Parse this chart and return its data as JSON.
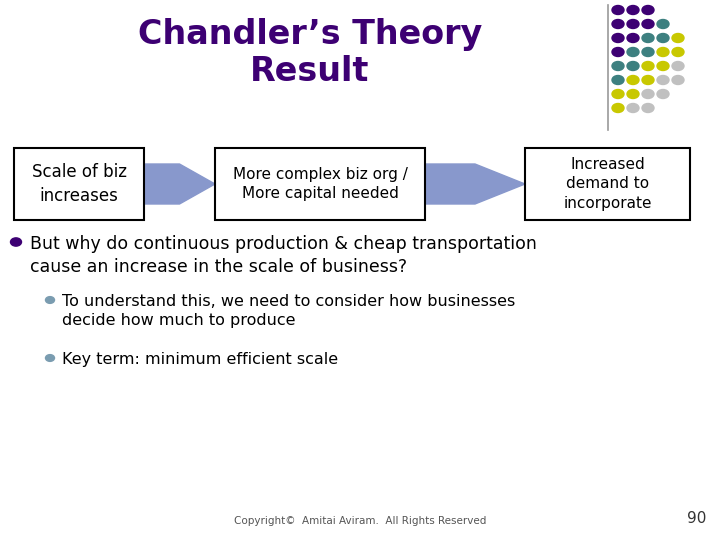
{
  "title_line1": "Chandler’s Theory",
  "title_line2": "Result",
  "title_color": "#3d0073",
  "title_fontsize": 24,
  "bg_color": "#ffffff",
  "box1_text": "Scale of biz\nincreases",
  "box2_text": "More complex biz org /\nMore capital needed",
  "box3_text": "Increased\ndemand to\nincorporate",
  "box_facecolor": "#ffffff",
  "box_edgecolor": "#000000",
  "arrow_color": "#8898cc",
  "bullet1_text": "But why do continuous production & cheap transportation\ncause an increase in the scale of business?",
  "bullet2_text": "To understand this, we need to consider how businesses\ndecide how much to produce",
  "bullet3_text": "Key term: minimum efficient scale",
  "bullet_color": "#000000",
  "bullet_dot_color": "#3d0073",
  "sub_bullet_dot_color": "#7a9cb0",
  "footer_text": "Copyright©  Amitai Aviram.  All Rights Reserved",
  "page_number": "90",
  "dot_grid": [
    [
      "#3d0073",
      "#3d0073",
      "#3d0073",
      "",
      ""
    ],
    [
      "#3d0073",
      "#3d0073",
      "#3d0073",
      "#3d8080",
      ""
    ],
    [
      "#3d0073",
      "#3d0073",
      "#3d8080",
      "#3d8080",
      "#c8c800"
    ],
    [
      "#3d0073",
      "#3d8080",
      "#3d8080",
      "#c8c800",
      "#c8c800"
    ],
    [
      "#3d8080",
      "#3d8080",
      "#c8c800",
      "#c8c800",
      "#c0c0c0"
    ],
    [
      "#3d8080",
      "#c8c800",
      "#c8c800",
      "#c0c0c0",
      "#c0c0c0"
    ],
    [
      "#c8c800",
      "#c8c800",
      "#c0c0c0",
      "#c0c0c0",
      ""
    ],
    [
      "#c8c800",
      "#c0c0c0",
      "#c0c0c0",
      "",
      ""
    ]
  ]
}
